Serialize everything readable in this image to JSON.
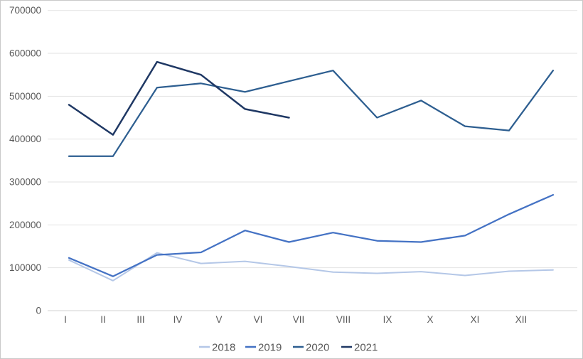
{
  "chart_data": {
    "type": "line",
    "title": "",
    "xlabel": "",
    "ylabel": "",
    "categories": [
      "I",
      "II",
      "III",
      "IV",
      "V",
      "VI",
      "VII",
      "VIII",
      "IX",
      "X",
      "XI",
      "XII"
    ],
    "y_ticks": [
      0,
      100000,
      200000,
      300000,
      400000,
      500000,
      600000,
      700000
    ],
    "y_tick_labels": [
      "0",
      "100000",
      "200000",
      "300000",
      "400000",
      "500000",
      "600000",
      "700000"
    ],
    "ylim": [
      0,
      700000
    ],
    "grid": true,
    "legend_position": "bottom",
    "axis_text_color": "#595959",
    "gridline_color": "#e2e2e2",
    "axis_line_color": "#d2d2d2",
    "series": [
      {
        "name": "2018",
        "color": "#b4c7e7",
        "values": [
          118000,
          70000,
          135000,
          110000,
          115000,
          103000,
          90000,
          87000,
          91000,
          82000,
          92000,
          95000
        ]
      },
      {
        "name": "2019",
        "color": "#4472c4",
        "values": [
          123000,
          80000,
          130000,
          136000,
          187000,
          160000,
          182000,
          163000,
          160000,
          175000,
          225000,
          270000
        ]
      },
      {
        "name": "2020",
        "color": "#2d5e90",
        "values": [
          360000,
          360000,
          520000,
          530000,
          510000,
          535000,
          560000,
          450000,
          490000,
          430000,
          420000,
          560000
        ]
      },
      {
        "name": "2021",
        "color": "#1f3864",
        "values": [
          480000,
          410000,
          580000,
          550000,
          470000,
          450000
        ]
      }
    ]
  }
}
